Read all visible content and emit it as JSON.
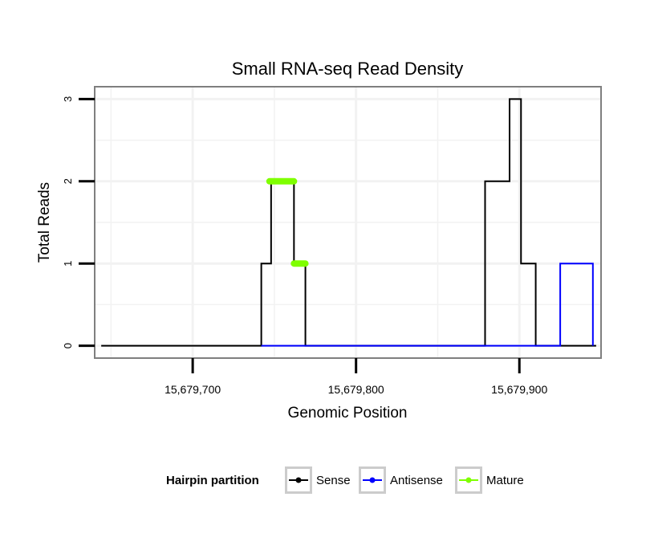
{
  "chart_data": {
    "type": "line",
    "title": "Small RNA-seq Read Density",
    "xlabel": "Genomic Position",
    "ylabel": "Total Reads",
    "xlim": [
      15679640,
      15679950
    ],
    "ylim": [
      -0.15,
      3.15
    ],
    "x_ticks": [
      15679700,
      15679800,
      15679900
    ],
    "x_tick_labels": [
      "15,679,700",
      "15,679,800",
      "15,679,900"
    ],
    "y_ticks": [
      0,
      1,
      2,
      3
    ],
    "y_tick_labels": [
      "0",
      "1",
      "2",
      "3"
    ],
    "grid": true,
    "legend": {
      "title": "Hairpin partition",
      "position": "bottom",
      "items": [
        {
          "name": "Sense",
          "color": "#000000"
        },
        {
          "name": "Antisense",
          "color": "#0000ff"
        },
        {
          "name": "Mature",
          "color": "#7fff00"
        }
      ]
    },
    "series": [
      {
        "name": "Sense",
        "color": "#000000",
        "x": [
          15679644,
          15679742,
          15679742,
          15679748,
          15679748,
          15679762,
          15679762,
          15679769,
          15679769,
          15679879,
          15679879,
          15679892,
          15679892,
          15679894,
          15679894,
          15679895,
          15679895,
          15679901,
          15679901,
          15679910,
          15679910,
          15679947
        ],
        "values": [
          0,
          0,
          1,
          1,
          2,
          2,
          1,
          1,
          0,
          0,
          2,
          2,
          2,
          2,
          3,
          3,
          3,
          3,
          1,
          1,
          0,
          0
        ]
      },
      {
        "name": "Antisense",
        "color": "#0000ff",
        "x": [
          15679742,
          15679769,
          15679879,
          15679911,
          15679911,
          15679925,
          15679925,
          15679945,
          15679945
        ],
        "values": [
          0,
          0,
          0,
          0,
          0,
          0,
          1,
          1,
          0
        ]
      },
      {
        "name": "Mature",
        "color": "#7fff00",
        "segments": [
          {
            "x": [
              15679747,
              15679762
            ],
            "values": [
              2,
              2
            ]
          },
          {
            "x": [
              15679762,
              15679769
            ],
            "values": [
              1,
              1
            ]
          }
        ]
      }
    ]
  }
}
